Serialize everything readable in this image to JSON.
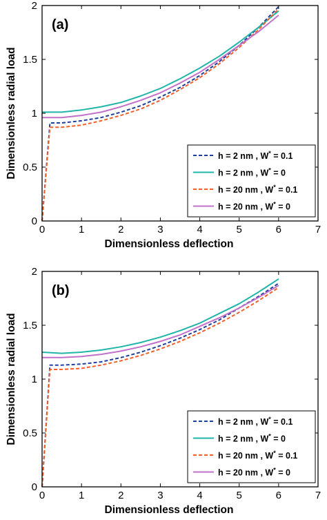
{
  "chart_data": [
    {
      "type": "line",
      "panel_label": "(a)",
      "xlabel": "Dimensionless deflection",
      "ylabel": "Dimensionless radial load",
      "xlim": [
        0,
        7
      ],
      "ylim": [
        0,
        2
      ],
      "xticks": [
        "0",
        "1",
        "2",
        "3",
        "4",
        "5",
        "6",
        "7"
      ],
      "yticks": [
        "0",
        "0.5",
        "1",
        "1.5",
        "2"
      ],
      "grid": false,
      "legend_position": "bottom-right",
      "series": [
        {
          "name": "h = 2 nm  ,  W* = 0.1",
          "legend": {
            "prefix": "h = 2 nm  ,  W",
            "sup": "*",
            "suffix": " = 0.1"
          },
          "color": "#1f3f9a",
          "dash": "dashed",
          "x": [
            0,
            0.2,
            0.5,
            1,
            1.5,
            2,
            2.5,
            3,
            3.5,
            4,
            4.5,
            5,
            5.5,
            6
          ],
          "y": [
            0,
            0.91,
            0.91,
            0.93,
            0.96,
            1.01,
            1.07,
            1.15,
            1.24,
            1.35,
            1.48,
            1.63,
            1.8,
            1.99
          ]
        },
        {
          "name": "h = 2 nm  ,  W* = 0",
          "legend": {
            "prefix": "h = 2 nm  ,  W",
            "sup": "*",
            "suffix": " = 0"
          },
          "color": "#1fb5a8",
          "dash": "solid",
          "x": [
            0,
            0.5,
            1,
            1.5,
            2,
            2.5,
            3,
            3.5,
            4,
            4.5,
            5,
            5.5,
            6
          ],
          "y": [
            1.01,
            1.01,
            1.03,
            1.06,
            1.1,
            1.16,
            1.23,
            1.32,
            1.42,
            1.53,
            1.66,
            1.8,
            1.95
          ]
        },
        {
          "name": "h = 20 nm  ,  W* = 0.1",
          "legend": {
            "prefix": "h = 20 nm  ,  W",
            "sup": "*",
            "suffix": " = 0.1"
          },
          "color": "#f0602a",
          "dash": "dashed",
          "x": [
            0,
            0.2,
            0.5,
            1,
            1.5,
            2,
            2.5,
            3,
            3.5,
            4,
            4.5,
            5,
            5.5,
            6
          ],
          "y": [
            0,
            0.87,
            0.87,
            0.89,
            0.93,
            0.98,
            1.04,
            1.12,
            1.22,
            1.33,
            1.46,
            1.61,
            1.78,
            1.97
          ]
        },
        {
          "name": "h = 20 nm  ,  W* = 0",
          "legend": {
            "prefix": "h = 20 nm  ,  W",
            "sup": "*",
            "suffix": " = 0"
          },
          "color": "#c070c8",
          "dash": "solid",
          "x": [
            0,
            0.5,
            1,
            1.5,
            2,
            2.5,
            3,
            3.5,
            4,
            4.5,
            5,
            5.5,
            6
          ],
          "y": [
            0.96,
            0.96,
            0.98,
            1.01,
            1.06,
            1.12,
            1.19,
            1.28,
            1.38,
            1.5,
            1.63,
            1.76,
            1.91
          ]
        }
      ]
    },
    {
      "type": "line",
      "panel_label": "(b)",
      "xlabel": "Dimensionless deflection",
      "ylabel": "Dimensionless radial load",
      "xlim": [
        0,
        7
      ],
      "ylim": [
        0,
        2
      ],
      "xticks": [
        "0",
        "1",
        "2",
        "3",
        "4",
        "5",
        "6",
        "7"
      ],
      "yticks": [
        "0",
        "0.5",
        "1",
        "1.5",
        "2"
      ],
      "grid": false,
      "legend_position": "bottom-right",
      "series": [
        {
          "name": "h = 2 nm  ,  W* = 0.1",
          "legend": {
            "prefix": "h = 2 nm  ,  W",
            "sup": "*",
            "suffix": " = 0.1"
          },
          "color": "#1f3f9a",
          "dash": "dashed",
          "x": [
            0,
            0.2,
            0.5,
            1,
            1.5,
            2,
            2.5,
            3,
            3.5,
            4,
            4.5,
            5,
            5.5,
            6
          ],
          "y": [
            0,
            1.13,
            1.13,
            1.14,
            1.16,
            1.2,
            1.25,
            1.31,
            1.38,
            1.46,
            1.55,
            1.66,
            1.77,
            1.89
          ]
        },
        {
          "name": "h = 2 nm  ,  W* = 0",
          "legend": {
            "prefix": "h = 2 nm  ,  W",
            "sup": "*",
            "suffix": " = 0"
          },
          "color": "#1fb5a8",
          "dash": "solid",
          "x": [
            0,
            0.5,
            1,
            1.5,
            2,
            2.5,
            3,
            3.5,
            4,
            4.5,
            5,
            5.5,
            6
          ],
          "y": [
            1.25,
            1.24,
            1.25,
            1.27,
            1.3,
            1.34,
            1.39,
            1.45,
            1.52,
            1.61,
            1.7,
            1.81,
            1.93
          ]
        },
        {
          "name": "h = 20 nm  ,  W* = 0.1",
          "legend": {
            "prefix": "h = 20 nm  ,  W",
            "sup": "*",
            "suffix": " = 0.1"
          },
          "color": "#f0602a",
          "dash": "dashed",
          "x": [
            0,
            0.2,
            0.5,
            1,
            1.5,
            2,
            2.5,
            3,
            3.5,
            4,
            4.5,
            5,
            5.5,
            6
          ],
          "y": [
            0,
            1.09,
            1.09,
            1.1,
            1.13,
            1.17,
            1.22,
            1.28,
            1.35,
            1.43,
            1.52,
            1.62,
            1.73,
            1.85
          ]
        },
        {
          "name": "h = 20 nm  ,  W* = 0",
          "legend": {
            "prefix": "h = 20 nm  ,  W",
            "sup": "*",
            "suffix": " = 0"
          },
          "color": "#c070c8",
          "dash": "solid",
          "x": [
            0,
            0.5,
            1,
            1.5,
            2,
            2.5,
            3,
            3.5,
            4,
            4.5,
            5,
            5.5,
            6
          ],
          "y": [
            1.2,
            1.2,
            1.21,
            1.23,
            1.26,
            1.3,
            1.35,
            1.41,
            1.49,
            1.57,
            1.66,
            1.76,
            1.87
          ]
        }
      ]
    }
  ]
}
